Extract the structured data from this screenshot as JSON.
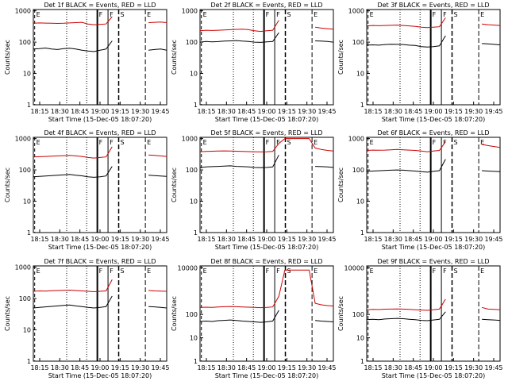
{
  "chart_data": [
    {
      "type": "line",
      "title": "Det 1f BLACK = Events, RED = LLD",
      "xlabel": "Start Time (15-Dec-05 18:07:20)",
      "ylabel": "Counts/sec",
      "x_ticks": [
        "18:15",
        "18:30",
        "18:45",
        "19:00",
        "19:15",
        "19:30",
        "19:45"
      ],
      "y_ticks": [
        "1",
        "10",
        "100",
        "1000"
      ],
      "ylim": [
        1,
        1100
      ],
      "log_y": true,
      "markers": [
        "E",
        "F",
        "F",
        "S",
        "E"
      ],
      "series": [
        {
          "color": "#cc0000",
          "values": [
            400,
            410,
            405,
            400,
            395,
            400,
            410,
            420,
            430,
            380,
            360,
            370,
            380,
            650,
            null,
            null,
            null,
            null,
            null,
            420,
            430,
            440,
            420
          ]
        },
        {
          "color": "#000000",
          "values": [
            60,
            62,
            65,
            60,
            58,
            62,
            64,
            60,
            55,
            52,
            50,
            55,
            60,
            110,
            null,
            null,
            null,
            null,
            null,
            55,
            58,
            60,
            55
          ]
        }
      ]
    },
    {
      "type": "line",
      "title": "Det 2f BLACK = Events, RED = LLD",
      "xlabel": "Start Time (15-Dec-05 18:07:20)",
      "ylabel": "Counts/sec",
      "x_ticks": [
        "18:15",
        "18:30",
        "18:45",
        "19:00",
        "19:15",
        "19:30",
        "19:45"
      ],
      "y_ticks": [
        "1",
        "10",
        "100",
        "1000"
      ],
      "ylim": [
        1,
        1100
      ],
      "log_y": true,
      "markers": [
        "E",
        "F",
        "F",
        "S",
        "E"
      ],
      "series": [
        {
          "color": "#cc0000",
          "values": [
            230,
            240,
            235,
            240,
            245,
            250,
            255,
            260,
            250,
            230,
            220,
            230,
            240,
            500,
            null,
            null,
            null,
            null,
            null,
            300,
            280,
            270,
            260
          ]
        },
        {
          "color": "#000000",
          "values": [
            100,
            105,
            102,
            104,
            108,
            110,
            112,
            108,
            105,
            100,
            98,
            102,
            105,
            200,
            null,
            null,
            null,
            null,
            null,
            110,
            108,
            105,
            100
          ]
        }
      ]
    },
    {
      "type": "line",
      "title": "Det 3f BLACK = Events, RED = LLD",
      "xlabel": "Start Time (15-Dec-05 18:07:20)",
      "ylabel": "Counts/sec",
      "x_ticks": [
        "18:15",
        "18:30",
        "18:45",
        "19:00",
        "19:15",
        "19:30",
        "19:45"
      ],
      "y_ticks": [
        "1",
        "10",
        "100",
        "1000"
      ],
      "ylim": [
        1,
        1100
      ],
      "log_y": true,
      "markers": [
        "E",
        "F",
        "F",
        "S",
        "E"
      ],
      "series": [
        {
          "color": "#cc0000",
          "values": [
            330,
            340,
            335,
            340,
            345,
            350,
            340,
            330,
            320,
            300,
            290,
            300,
            310,
            600,
            null,
            null,
            null,
            null,
            null,
            380,
            360,
            350,
            340
          ]
        },
        {
          "color": "#000000",
          "values": [
            80,
            82,
            80,
            84,
            86,
            85,
            84,
            80,
            78,
            72,
            70,
            72,
            76,
            160,
            null,
            null,
            null,
            null,
            null,
            90,
            88,
            85,
            82
          ]
        }
      ]
    },
    {
      "type": "line",
      "title": "Det 4f BLACK = Events, RED = LLD",
      "xlabel": "Start Time (15-Dec-05 18:07:20)",
      "ylabel": "Counts/sec",
      "x_ticks": [
        "18:15",
        "18:30",
        "18:45",
        "19:00",
        "19:15",
        "19:30",
        "19:45"
      ],
      "y_ticks": [
        "1",
        "10",
        "100",
        "1000"
      ],
      "ylim": [
        1,
        1100
      ],
      "log_y": true,
      "markers": [
        "E",
        "F",
        "F",
        "S",
        "E"
      ],
      "series": [
        {
          "color": "#cc0000",
          "values": [
            260,
            265,
            270,
            275,
            280,
            285,
            290,
            280,
            270,
            250,
            240,
            250,
            260,
            550,
            null,
            null,
            null,
            null,
            null,
            300,
            290,
            280,
            270
          ]
        },
        {
          "color": "#000000",
          "values": [
            60,
            62,
            64,
            66,
            68,
            70,
            72,
            68,
            65,
            60,
            58,
            60,
            64,
            130,
            null,
            null,
            null,
            null,
            null,
            68,
            66,
            64,
            62
          ]
        }
      ]
    },
    {
      "type": "line",
      "title": "Det 5f BLACK = Events, RED = LLD",
      "xlabel": "Start Time (15-Dec-05 18:07:20)",
      "ylabel": "Counts/sec",
      "x_ticks": [
        "18:15",
        "18:30",
        "18:45",
        "19:00",
        "19:15",
        "19:30",
        "19:45"
      ],
      "y_ticks": [
        "1",
        "10",
        "100",
        "1000"
      ],
      "ylim": [
        1,
        1100
      ],
      "log_y": true,
      "markers": [
        "E",
        "F",
        "F",
        "S",
        "E"
      ],
      "series": [
        {
          "color": "#cc0000",
          "values": [
            380,
            390,
            395,
            400,
            405,
            400,
            395,
            390,
            385,
            380,
            375,
            380,
            390,
            700,
            1000,
            1000,
            1000,
            1000,
            1000,
            500,
            450,
            420,
            400
          ]
        },
        {
          "color": "#000000",
          "values": [
            120,
            125,
            128,
            130,
            132,
            135,
            130,
            128,
            125,
            120,
            118,
            120,
            125,
            300,
            null,
            null,
            null,
            null,
            null,
            130,
            128,
            125,
            120
          ]
        }
      ]
    },
    {
      "type": "line",
      "title": "Det 6f BLACK = Events, RED = LLD",
      "xlabel": "Start Time (15-Dec-05 18:07:20)",
      "ylabel": "Counts/sec",
      "x_ticks": [
        "18:15",
        "18:30",
        "18:45",
        "19:00",
        "19:15",
        "19:30",
        "19:45"
      ],
      "y_ticks": [
        "1",
        "10",
        "100",
        "1000"
      ],
      "ylim": [
        1,
        1100
      ],
      "log_y": true,
      "markers": [
        "E",
        "F",
        "F",
        "S",
        "E"
      ],
      "series": [
        {
          "color": "#cc0000",
          "values": [
            420,
            430,
            425,
            430,
            440,
            450,
            440,
            430,
            420,
            400,
            380,
            400,
            420,
            800,
            null,
            null,
            null,
            null,
            null,
            650,
            600,
            560,
            520
          ]
        },
        {
          "color": "#000000",
          "values": [
            90,
            92,
            94,
            96,
            98,
            100,
            98,
            95,
            92,
            88,
            85,
            90,
            95,
            220,
            null,
            null,
            null,
            null,
            null,
            95,
            92,
            90,
            88
          ]
        }
      ]
    },
    {
      "type": "line",
      "title": "Det 7f BLACK = Events, RED = LLD",
      "xlabel": "Start Time (15-Dec-05 18:07:20)",
      "ylabel": "Counts/sec",
      "x_ticks": [
        "18:15",
        "18:30",
        "18:45",
        "19:00",
        "19:15",
        "19:30",
        "19:45"
      ],
      "y_ticks": [
        "1",
        "10",
        "100",
        "1000"
      ],
      "ylim": [
        1,
        1100
      ],
      "log_y": true,
      "markers": [
        "E",
        "F",
        "F",
        "S",
        "E"
      ],
      "series": [
        {
          "color": "#cc0000",
          "values": [
            170,
            175,
            172,
            178,
            180,
            182,
            185,
            180,
            175,
            170,
            165,
            170,
            175,
            400,
            null,
            null,
            null,
            null,
            null,
            180,
            175,
            172,
            170
          ]
        },
        {
          "color": "#000000",
          "values": [
            50,
            52,
            54,
            56,
            58,
            60,
            62,
            58,
            55,
            52,
            50,
            52,
            55,
            120,
            null,
            null,
            null,
            null,
            null,
            55,
            54,
            52,
            50
          ]
        }
      ]
    },
    {
      "type": "line",
      "title": "Det 8f BLACK = Events, RED = LLD",
      "xlabel": "Start Time (15-Dec-05 18:07:20)",
      "ylabel": "Counts/sec",
      "x_ticks": [
        "18:15",
        "18:30",
        "18:45",
        "19:00",
        "19:15",
        "19:30",
        "19:45"
      ],
      "y_ticks": [
        "1",
        "10",
        "100",
        "10000"
      ],
      "ylim": [
        1,
        12000
      ],
      "log_y": true,
      "markers": [
        "E",
        "F",
        "F",
        "S",
        "E"
      ],
      "series": [
        {
          "color": "#cc0000",
          "values": [
            200,
            205,
            200,
            210,
            215,
            220,
            215,
            210,
            205,
            200,
            195,
            200,
            210,
            600,
            8000,
            8000,
            8000,
            8000,
            8000,
            300,
            260,
            240,
            230
          ]
        },
        {
          "color": "#000000",
          "values": [
            50,
            52,
            50,
            54,
            56,
            58,
            55,
            52,
            50,
            48,
            46,
            48,
            52,
            150,
            null,
            null,
            null,
            null,
            null,
            55,
            52,
            50,
            48
          ]
        }
      ]
    },
    {
      "type": "line",
      "title": "Det 9f BLACK = Events, RED = LLD",
      "xlabel": "Start Time (15-Dec-05 18:07:20)",
      "ylabel": "Counts/sec",
      "x_ticks": [
        "18:15",
        "18:30",
        "18:45",
        "19:00",
        "19:15",
        "19:30",
        "19:45"
      ],
      "y_ticks": [
        "1",
        "10",
        "100",
        "10000"
      ],
      "ylim": [
        1,
        12000
      ],
      "log_y": true,
      "markers": [
        "E",
        "F",
        "F",
        "S",
        "E"
      ],
      "series": [
        {
          "color": "#cc0000",
          "values": [
            160,
            165,
            162,
            168,
            170,
            172,
            170,
            165,
            160,
            155,
            150,
            160,
            170,
            450,
            null,
            null,
            null,
            null,
            null,
            200,
            170,
            165,
            160
          ]
        },
        {
          "color": "#000000",
          "values": [
            60,
            62,
            60,
            64,
            66,
            68,
            66,
            62,
            60,
            56,
            54,
            58,
            62,
            130,
            null,
            null,
            null,
            null,
            null,
            62,
            60,
            58,
            56
          ]
        }
      ]
    }
  ]
}
